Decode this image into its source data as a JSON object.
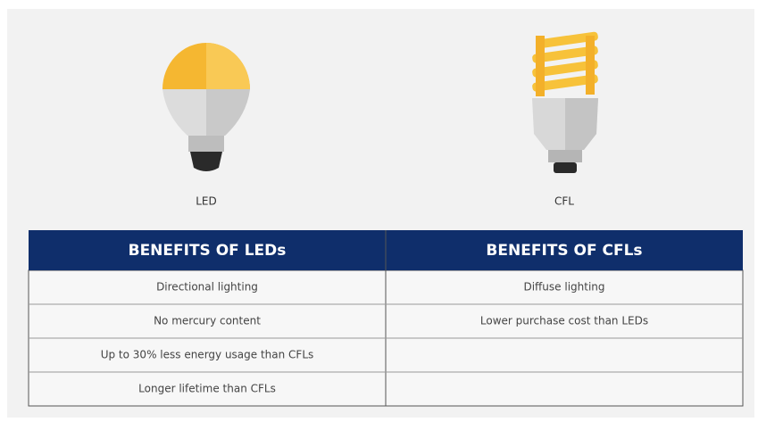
{
  "led": {
    "label": "LED",
    "heading": "BENEFITS OF LEDs",
    "benefits": [
      "Directional lighting",
      "No mercury content",
      "Up to 30% less energy usage than CFLs",
      "Longer lifetime than CFLs"
    ]
  },
  "cfl": {
    "label": "CFL",
    "heading": "BENEFITS OF CFLs",
    "benefits": [
      "Diffuse lighting",
      "Lower purchase cost than LEDs"
    ]
  }
}
